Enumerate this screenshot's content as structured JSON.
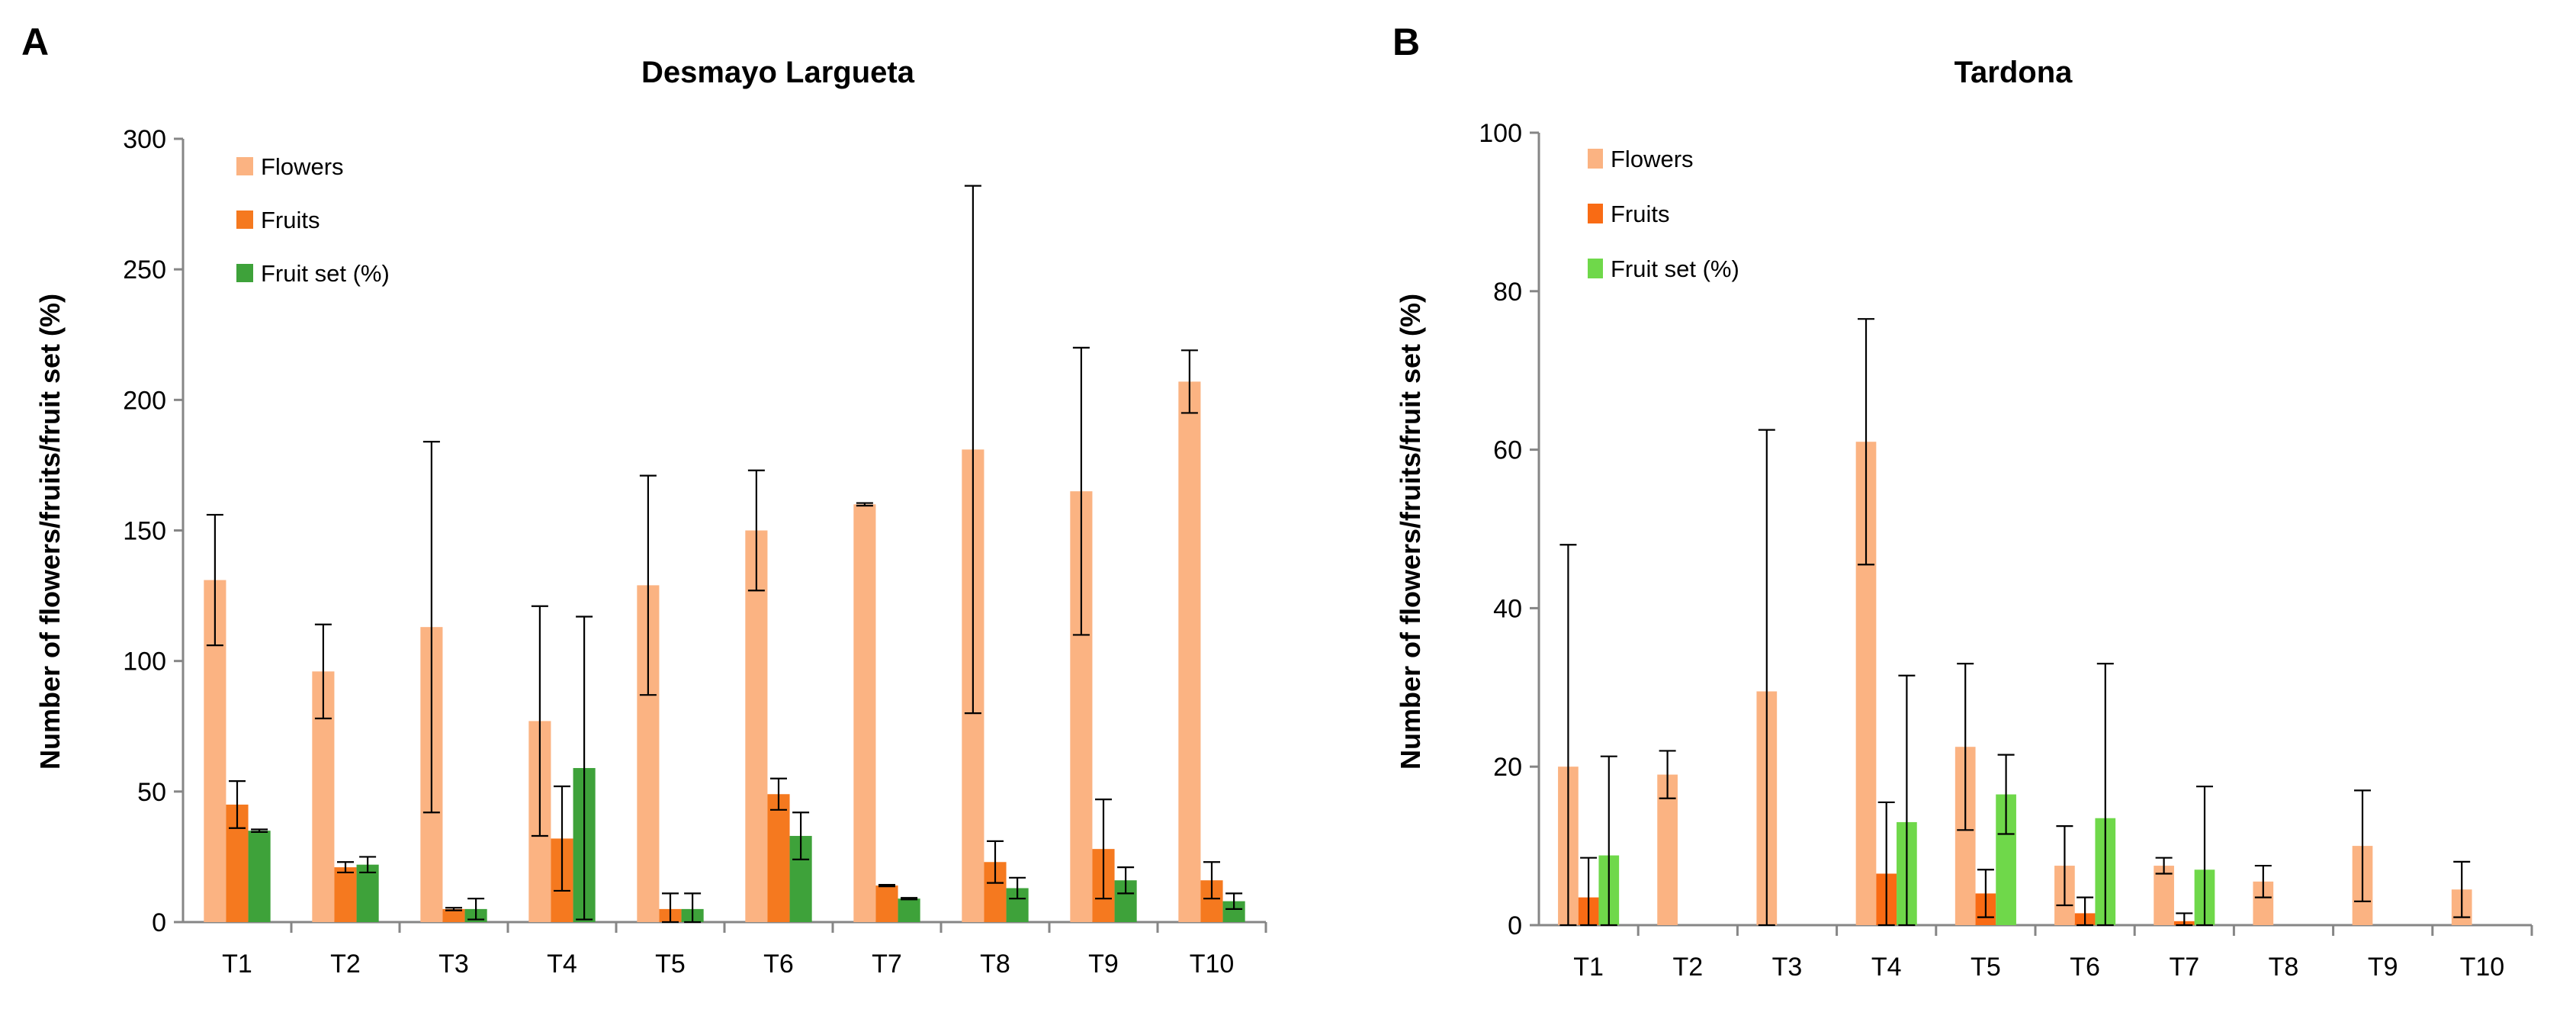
{
  "chart_data": [
    {
      "type": "bar",
      "panel_label": "A",
      "title": "Desmayo Largueta",
      "ylabel": "Number of flowers/fruits/fruit set (%)",
      "xlabel": "",
      "ylim": [
        0,
        300
      ],
      "yticks": [
        "0",
        "50",
        "100",
        "150",
        "200",
        "250",
        "300"
      ],
      "categories": [
        "T1",
        "T2",
        "T3",
        "T4",
        "T5",
        "T6",
        "T7",
        "T8",
        "T9",
        "T10"
      ],
      "legend_position": "top-left",
      "series": [
        {
          "name": "Flowers",
          "color": "#FBB382",
          "values": [
            131,
            96,
            113,
            77,
            129,
            150,
            160,
            181,
            165,
            207
          ],
          "errors": [
            25,
            18,
            71,
            44,
            42,
            23,
            0.5,
            101,
            55,
            12
          ]
        },
        {
          "name": "Fruits",
          "color": "#F5791F",
          "values": [
            45,
            21,
            5,
            32,
            5,
            49,
            14,
            23,
            28,
            16
          ],
          "errors": [
            9,
            2,
            0.5,
            20,
            6,
            6,
            0.3,
            8,
            19,
            7
          ]
        },
        {
          "name": "Fruit set (%)",
          "color": "#3EA23A",
          "values": [
            35,
            22,
            5,
            59,
            5,
            33,
            9,
            13,
            16,
            8
          ],
          "errors": [
            0.5,
            3,
            4,
            58,
            6,
            9,
            0.3,
            4,
            5,
            3
          ]
        }
      ]
    },
    {
      "type": "bar",
      "panel_label": "B",
      "title": "Tardona",
      "ylabel": "Number of flowers/fruits/fruit set (%)",
      "xlabel": "",
      "ylim": [
        0,
        100
      ],
      "yticks": [
        "0",
        "20",
        "40",
        "60",
        "80",
        "100"
      ],
      "categories": [
        "T1",
        "T2",
        "T3",
        "T4",
        "T5",
        "T6",
        "T7",
        "T8",
        "T9",
        "T10"
      ],
      "legend_position": "top-left",
      "series": [
        {
          "name": "Flowers",
          "color": "#FBB382",
          "values": [
            20,
            19,
            29.5,
            61,
            22.5,
            7.5,
            7.5,
            5.5,
            10,
            4.5
          ],
          "errors": [
            28,
            3,
            33,
            15.5,
            10.5,
            5,
            1,
            2,
            7,
            3.5
          ]
        },
        {
          "name": "Fruits",
          "color": "#F96B14",
          "values": [
            3.5,
            0,
            0,
            6.5,
            4,
            1.5,
            0.5,
            0,
            0,
            0
          ],
          "errors": [
            5,
            0,
            0,
            9,
            3,
            2,
            1,
            0,
            0,
            0
          ]
        },
        {
          "name": "Fruit set (%)",
          "color": "#6FD84A",
          "values": [
            8.8,
            0,
            0,
            13,
            16.5,
            13.5,
            7,
            0,
            0,
            0
          ],
          "errors": [
            12.5,
            0,
            0,
            18.5,
            5,
            19.5,
            10.5,
            0,
            0,
            0
          ]
        }
      ]
    }
  ]
}
